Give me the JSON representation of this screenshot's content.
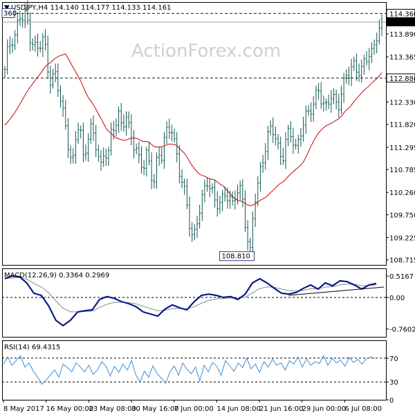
{
  "chart_data": [
    {
      "type": "candlestick",
      "title": "USDJPY,H4",
      "ohlc_readout": "114.140 114.177 114.133 114.161",
      "ylim": [
        108.6,
        114.62
      ],
      "y_ticks": [
        "114.360",
        "114.161",
        "113.890",
        "113.365",
        "112.880",
        "112.330",
        "111.820",
        "111.295",
        "110.785",
        "110.260",
        "109.750",
        "109.225",
        "108.715"
      ],
      "highlight_labels": {
        "resistance": "114.360",
        "current": "114.161",
        "support": "112.880",
        "low": "108.810",
        "left_cut": "360"
      },
      "x_ticks": [
        "8 May 2017",
        "16 May 00:00",
        "23 May 08:00",
        "30 May 16:00",
        "7 Jun 00:00",
        "14 Jun 08:00",
        "21 Jun 16:00",
        "29 Jun 00:00",
        "6 Jul 08:00"
      ],
      "close_path": [
        113.0,
        113.6,
        113.8,
        113.9,
        114.3,
        114.2,
        114.36,
        113.9,
        113.7,
        113.5,
        113.6,
        113.8,
        113.2,
        112.8,
        113.0,
        112.6,
        112.2,
        111.9,
        111.3,
        110.8,
        111.5,
        111.9,
        111.1,
        111.4,
        111.7,
        111.5,
        111.2,
        110.9,
        111.3,
        111.0,
        111.6,
        111.8,
        112.1,
        111.8,
        112.0,
        111.6,
        111.4,
        111.3,
        111.0,
        110.8,
        111.1,
        110.7,
        110.6,
        111.2,
        111.0,
        111.5,
        111.7,
        111.8,
        111.3,
        110.7,
        110.4,
        110.1,
        109.6,
        109.2,
        109.5,
        109.9,
        110.3,
        110.6,
        110.4,
        110.0,
        109.9,
        110.1,
        110.3,
        110.2,
        109.9,
        110.2,
        110.4,
        110.1,
        109.3,
        108.81,
        109.9,
        110.4,
        110.9,
        111.2,
        111.5,
        111.7,
        111.6,
        111.3,
        111.0,
        111.4,
        111.6,
        111.5,
        111.3,
        111.6,
        111.8,
        112.0,
        112.2,
        112.4,
        112.7,
        112.3,
        112.1,
        112.4,
        112.6,
        112.3,
        112.2,
        112.6,
        113.0,
        113.1,
        113.2,
        113.0,
        112.9,
        113.3,
        113.5,
        113.4,
        113.6,
        113.9,
        114.161
      ],
      "ma_start": 111.8,
      "ma_end": 113.0,
      "series": [
        {
          "name": "",
          "type": "moving-average",
          "color": "#cc0000"
        }
      ],
      "colors": {
        "candles": "#0d5552",
        "ma": "#cc0000",
        "dash": "#1a1a1a"
      }
    },
    {
      "type": "line",
      "title": "MACD(12,26,9) 0.3364 0.2969",
      "ylim": [
        -0.95,
        0.7
      ],
      "y_ticks": [
        "0.5167",
        "0.00",
        "-0.7602"
      ],
      "macd_values": [
        0.45,
        0.52,
        0.5,
        0.35,
        0.1,
        0.05,
        -0.2,
        -0.55,
        -0.68,
        -0.55,
        -0.35,
        -0.32,
        -0.3,
        -0.05,
        0.02,
        -0.02,
        -0.1,
        -0.15,
        -0.22,
        -0.35,
        -0.4,
        -0.45,
        -0.28,
        -0.18,
        -0.25,
        -0.3,
        -0.1,
        0.05,
        0.08,
        0.05,
        0.0,
        0.02,
        -0.05,
        0.08,
        0.35,
        0.45,
        0.35,
        0.22,
        0.1,
        0.08,
        0.12,
        0.22,
        0.3,
        0.2,
        0.35,
        0.28,
        0.4,
        0.38,
        0.3,
        0.2,
        0.3,
        0.3364
      ],
      "trendline": [
        0.05,
        0.25
      ],
      "colors": {
        "macd": "#0a1a8c",
        "signal": "#888888"
      }
    },
    {
      "type": "line",
      "title": "RSI(14) 69.4315",
      "ylim": [
        0,
        100
      ],
      "y_ticks": [
        "70",
        "30",
        "0"
      ],
      "rsi_values": [
        60,
        72,
        58,
        66,
        74,
        55,
        62,
        48,
        38,
        26,
        33,
        42,
        50,
        38,
        60,
        54,
        47,
        62,
        55,
        47,
        58,
        43,
        50,
        64,
        57,
        40,
        56,
        46,
        60,
        50,
        66,
        42,
        30,
        48,
        38,
        57,
        44,
        36,
        28,
        47,
        57,
        41,
        62,
        51,
        44,
        55,
        32,
        58,
        47,
        63,
        56,
        41,
        66,
        57,
        48,
        62,
        54,
        70,
        52,
        60,
        46,
        64,
        55,
        68,
        58,
        62,
        50,
        66,
        60,
        72,
        55,
        69,
        58,
        64,
        61,
        74,
        58,
        70,
        62,
        67,
        56,
        71,
        63,
        68,
        60,
        69,
        72,
        69.43
      ],
      "colors": {
        "rsi": "#3a8fd6"
      }
    }
  ],
  "watermark": "ActionForex.com"
}
